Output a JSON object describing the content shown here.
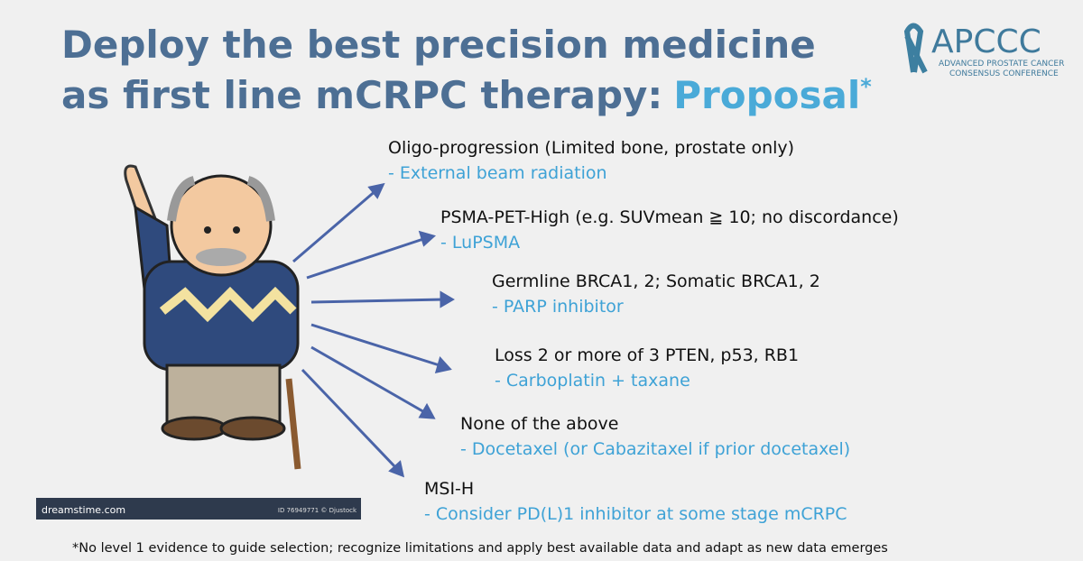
{
  "header": {
    "title_line1": "Deploy the best precision medicine",
    "title_line2": "as first line mCRPC therapy:",
    "title_highlight": "Proposal",
    "title_mark": "*"
  },
  "logo": {
    "name": "APCCC",
    "line1": "ADVANCED PROSTATE CANCER",
    "line2": "CONSENSUS CONFERENCE"
  },
  "items": [
    {
      "condition": "Oligo-progression (Limited bone, prostate only)",
      "therapy": "- External beam radiation"
    },
    {
      "condition": "PSMA-PET-High (e.g. SUVmean ≧ 10;  no discordance)",
      "therapy": "- LuPSMA"
    },
    {
      "condition": "Germline BRCA1, 2; Somatic BRCA1, 2",
      "therapy": "- PARP inhibitor"
    },
    {
      "condition": "Loss 2 or more of 3 PTEN, p53, RB1",
      "therapy": "- Carboplatin + taxane"
    },
    {
      "condition": "None of the above",
      "therapy": "- Docetaxel (or Cabazitaxel if prior docetaxel)"
    },
    {
      "condition": "MSI-H",
      "therapy": "- Consider PD(L)1 inhibitor at some stage mCRPC"
    }
  ],
  "image": {
    "watermark": "dreamstime.com",
    "credit": "ID 76949771 © Djustock"
  },
  "footnote": "*No level 1 evidence to guide selection; recognize limitations and apply best available data and adapt as new data emerges"
}
